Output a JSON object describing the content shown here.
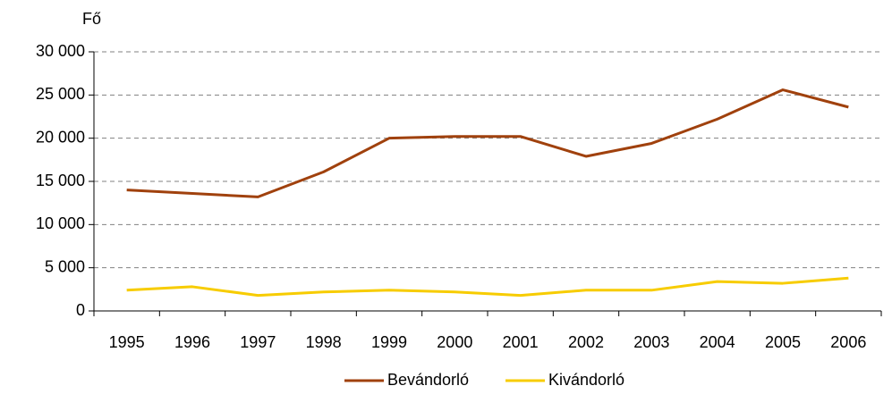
{
  "chart_data": {
    "type": "line",
    "y_label": "Fő",
    "categories": [
      "1995",
      "1996",
      "1997",
      "1998",
      "1999",
      "2000",
      "2001",
      "2002",
      "2003",
      "2004",
      "2005",
      "2006"
    ],
    "series": [
      {
        "name": "Bevándorló",
        "color": "#a0410d",
        "values": [
          14000,
          13600,
          13200,
          16100,
          20000,
          20200,
          20200,
          17900,
          19400,
          22200,
          25600,
          23600
        ]
      },
      {
        "name": "Kivándorló",
        "color": "#f7cc00",
        "values": [
          2400,
          2800,
          1800,
          2200,
          2400,
          2200,
          1800,
          2400,
          2400,
          3400,
          3200,
          3800
        ]
      }
    ],
    "ylim": [
      0,
      30000
    ],
    "yticks": [
      0,
      {
        "value": 5000,
        "label": "5 000"
      },
      {
        "value": 10000,
        "label": "10 000"
      },
      {
        "value": 15000,
        "label": "15 000"
      },
      {
        "value": 20000,
        "label": "20 000"
      },
      {
        "value": 25000,
        "label": "25 000"
      },
      {
        "value": 30000,
        "label": "30 000"
      }
    ],
    "grid": true,
    "legend": "bottom"
  }
}
